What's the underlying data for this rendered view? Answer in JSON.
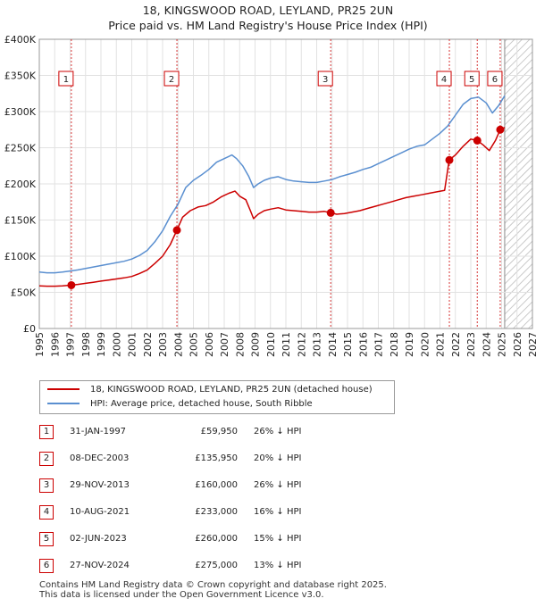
{
  "title": {
    "line1": "18, KINGSWOOD ROAD, LEYLAND, PR25 2UN",
    "line2": "Price paid vs. HM Land Registry's House Price Index (HPI)"
  },
  "colors": {
    "red": "#cc0000",
    "blue": "#5a8fd0",
    "marker_border": "#cc0000"
  },
  "chart_data": {
    "type": "line",
    "xlim": [
      1995,
      2027
    ],
    "ylim": [
      0,
      400000
    ],
    "x_ticks": [
      "1995",
      "1996",
      "1997",
      "1998",
      "1999",
      "2000",
      "2001",
      "2002",
      "2003",
      "2004",
      "2005",
      "2006",
      "2007",
      "2008",
      "2009",
      "2010",
      "2011",
      "2012",
      "2013",
      "2014",
      "2015",
      "2016",
      "2017",
      "2018",
      "2019",
      "2020",
      "2021",
      "2022",
      "2023",
      "2024",
      "2025",
      "2026",
      "2027"
    ],
    "y_ticks": [
      {
        "value": 0,
        "label": "£0"
      },
      {
        "value": 50000,
        "label": "£50K"
      },
      {
        "value": 100000,
        "label": "£100K"
      },
      {
        "value": 150000,
        "label": "£150K"
      },
      {
        "value": 200000,
        "label": "£200K"
      },
      {
        "value": 250000,
        "label": "£250K"
      },
      {
        "value": 300000,
        "label": "£300K"
      },
      {
        "value": 350000,
        "label": "£350K"
      },
      {
        "value": 400000,
        "label": "£400K"
      }
    ],
    "future_start": 2025.2,
    "series": [
      {
        "name": "HPI: Average price, detached house, South Ribble",
        "color": "#5a8fd0",
        "points": [
          [
            1995.0,
            78000
          ],
          [
            1995.5,
            77000
          ],
          [
            1996.0,
            77000
          ],
          [
            1996.5,
            78000
          ],
          [
            1997.0,
            79500
          ],
          [
            1997.5,
            81000
          ],
          [
            1998.0,
            83000
          ],
          [
            1998.5,
            85000
          ],
          [
            1999.0,
            87000
          ],
          [
            1999.5,
            89000
          ],
          [
            2000.0,
            91000
          ],
          [
            2000.5,
            93000
          ],
          [
            2001.0,
            96000
          ],
          [
            2001.5,
            101000
          ],
          [
            2002.0,
            108000
          ],
          [
            2002.5,
            120000
          ],
          [
            2003.0,
            135000
          ],
          [
            2003.5,
            155000
          ],
          [
            2004.0,
            172000
          ],
          [
            2004.5,
            195000
          ],
          [
            2005.0,
            205000
          ],
          [
            2005.5,
            212000
          ],
          [
            2006.0,
            220000
          ],
          [
            2006.5,
            230000
          ],
          [
            2007.0,
            235000
          ],
          [
            2007.5,
            240000
          ],
          [
            2007.8,
            235000
          ],
          [
            2008.2,
            225000
          ],
          [
            2008.6,
            210000
          ],
          [
            2008.9,
            195000
          ],
          [
            2009.2,
            200000
          ],
          [
            2009.6,
            205000
          ],
          [
            2010.0,
            208000
          ],
          [
            2010.5,
            210000
          ],
          [
            2011.0,
            206000
          ],
          [
            2011.5,
            204000
          ],
          [
            2012.0,
            203000
          ],
          [
            2012.5,
            202000
          ],
          [
            2013.0,
            202000
          ],
          [
            2013.5,
            204000
          ],
          [
            2014.0,
            206000
          ],
          [
            2014.5,
            210000
          ],
          [
            2015.0,
            213000
          ],
          [
            2015.5,
            216000
          ],
          [
            2016.0,
            220000
          ],
          [
            2016.5,
            223000
          ],
          [
            2017.0,
            228000
          ],
          [
            2017.5,
            233000
          ],
          [
            2018.0,
            238000
          ],
          [
            2018.5,
            243000
          ],
          [
            2019.0,
            248000
          ],
          [
            2019.5,
            252000
          ],
          [
            2020.0,
            254000
          ],
          [
            2020.5,
            262000
          ],
          [
            2021.0,
            270000
          ],
          [
            2021.5,
            280000
          ],
          [
            2022.0,
            295000
          ],
          [
            2022.5,
            310000
          ],
          [
            2023.0,
            318000
          ],
          [
            2023.5,
            320000
          ],
          [
            2024.0,
            312000
          ],
          [
            2024.4,
            298000
          ],
          [
            2024.8,
            308000
          ],
          [
            2025.2,
            322000
          ]
        ]
      },
      {
        "name": "18, KINGSWOOD ROAD, LEYLAND, PR25 2UN (detached house)",
        "color": "#cc0000",
        "points": [
          [
            1995.0,
            59000
          ],
          [
            1995.5,
            58500
          ],
          [
            1996.0,
            58500
          ],
          [
            1996.5,
            59000
          ],
          [
            1997.08,
            59950
          ],
          [
            1997.5,
            61000
          ],
          [
            1998.0,
            62500
          ],
          [
            1998.5,
            64000
          ],
          [
            1999.0,
            65500
          ],
          [
            1999.5,
            67000
          ],
          [
            2000.0,
            68500
          ],
          [
            2000.5,
            70000
          ],
          [
            2001.0,
            72000
          ],
          [
            2001.5,
            76000
          ],
          [
            2002.0,
            81000
          ],
          [
            2002.5,
            90000
          ],
          [
            2003.0,
            100000
          ],
          [
            2003.5,
            116000
          ],
          [
            2003.93,
            135950
          ],
          [
            2004.3,
            154000
          ],
          [
            2004.8,
            163000
          ],
          [
            2005.3,
            168000
          ],
          [
            2005.8,
            170000
          ],
          [
            2006.3,
            175000
          ],
          [
            2006.8,
            182000
          ],
          [
            2007.3,
            187000
          ],
          [
            2007.7,
            190000
          ],
          [
            2008.0,
            183000
          ],
          [
            2008.4,
            178000
          ],
          [
            2008.7,
            163000
          ],
          [
            2008.9,
            152000
          ],
          [
            2009.2,
            158000
          ],
          [
            2009.6,
            163000
          ],
          [
            2010.0,
            165000
          ],
          [
            2010.5,
            167000
          ],
          [
            2011.0,
            164000
          ],
          [
            2011.5,
            163000
          ],
          [
            2012.0,
            162000
          ],
          [
            2012.5,
            161000
          ],
          [
            2013.0,
            161000
          ],
          [
            2013.5,
            162000
          ],
          [
            2013.91,
            160000
          ],
          [
            2014.3,
            158000
          ],
          [
            2014.8,
            159000
          ],
          [
            2015.3,
            161000
          ],
          [
            2015.8,
            163000
          ],
          [
            2016.3,
            166000
          ],
          [
            2016.8,
            169000
          ],
          [
            2017.3,
            172000
          ],
          [
            2017.8,
            175000
          ],
          [
            2018.3,
            178000
          ],
          [
            2018.8,
            181000
          ],
          [
            2019.3,
            183000
          ],
          [
            2019.8,
            185000
          ],
          [
            2020.3,
            187000
          ],
          [
            2020.8,
            189000
          ],
          [
            2021.3,
            191000
          ],
          [
            2021.6,
            233000
          ],
          [
            2022.0,
            240000
          ],
          [
            2022.5,
            252000
          ],
          [
            2023.0,
            262000
          ],
          [
            2023.42,
            260000
          ],
          [
            2023.8,
            254000
          ],
          [
            2024.2,
            246000
          ],
          [
            2024.6,
            260000
          ],
          [
            2024.91,
            275000
          ],
          [
            2025.2,
            278000
          ]
        ]
      }
    ],
    "sales": [
      {
        "num": "1",
        "x": 1997.08,
        "y": 59950
      },
      {
        "num": "2",
        "x": 2003.93,
        "y": 135950
      },
      {
        "num": "3",
        "x": 2013.91,
        "y": 160000
      },
      {
        "num": "4",
        "x": 2021.61,
        "y": 233000
      },
      {
        "num": "5",
        "x": 2023.42,
        "y": 260000
      },
      {
        "num": "6",
        "x": 2024.91,
        "y": 275000
      }
    ]
  },
  "legend": {
    "red_label": "18, KINGSWOOD ROAD, LEYLAND, PR25 2UN (detached house)",
    "blue_label": "HPI: Average price, detached house, South Ribble"
  },
  "sales_table": [
    {
      "num": "1",
      "date": "31-JAN-1997",
      "price": "£59,950",
      "hpi": "26% ↓ HPI"
    },
    {
      "num": "2",
      "date": "08-DEC-2003",
      "price": "£135,950",
      "hpi": "20% ↓ HPI"
    },
    {
      "num": "3",
      "date": "29-NOV-2013",
      "price": "£160,000",
      "hpi": "26% ↓ HPI"
    },
    {
      "num": "4",
      "date": "10-AUG-2021",
      "price": "£233,000",
      "hpi": "16% ↓ HPI"
    },
    {
      "num": "5",
      "date": "02-JUN-2023",
      "price": "£260,000",
      "hpi": "15% ↓ HPI"
    },
    {
      "num": "6",
      "date": "27-NOV-2024",
      "price": "£275,000",
      "hpi": "13% ↓ HPI"
    }
  ],
  "footer": {
    "line1": "Contains HM Land Registry data © Crown copyright and database right 2025.",
    "line2": "This data is licensed under the Open Government Licence v3.0."
  }
}
